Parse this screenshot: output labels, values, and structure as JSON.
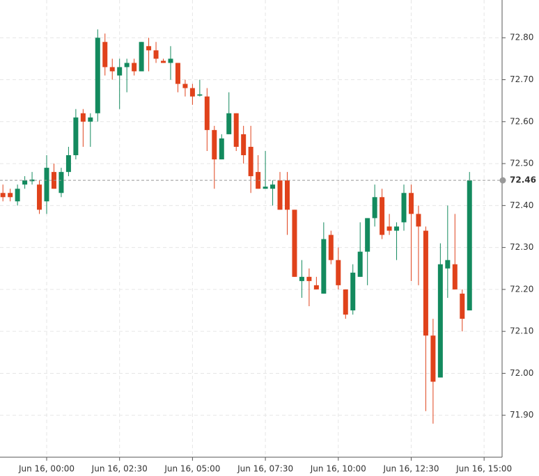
{
  "chart_data": {
    "type": "candlestick",
    "x": [
      "Jun 15, 22:30",
      "Jun 15, 22:45",
      "Jun 15, 23:00",
      "Jun 15, 23:15",
      "Jun 15, 23:30",
      "Jun 15, 23:45",
      "Jun 16, 00:00",
      "Jun 16, 00:15",
      "Jun 16, 00:30",
      "Jun 16, 00:45",
      "Jun 16, 01:00",
      "Jun 16, 01:15",
      "Jun 16, 01:30",
      "Jun 16, 01:45",
      "Jun 16, 02:00",
      "Jun 16, 02:15",
      "Jun 16, 02:30",
      "Jun 16, 02:45",
      "Jun 16, 03:00",
      "Jun 16, 03:15",
      "Jun 16, 03:30",
      "Jun 16, 03:45",
      "Jun 16, 04:00",
      "Jun 16, 04:15",
      "Jun 16, 04:30",
      "Jun 16, 04:45",
      "Jun 16, 05:00",
      "Jun 16, 05:15",
      "Jun 16, 05:30",
      "Jun 16, 05:45",
      "Jun 16, 06:00",
      "Jun 16, 06:15",
      "Jun 16, 06:30",
      "Jun 16, 06:45",
      "Jun 16, 07:00",
      "Jun 16, 07:15",
      "Jun 16, 07:30",
      "Jun 16, 07:45",
      "Jun 16, 08:00",
      "Jun 16, 08:15",
      "Jun 16, 08:30",
      "Jun 16, 08:45",
      "Jun 16, 09:00",
      "Jun 16, 09:15",
      "Jun 16, 09:30",
      "Jun 16, 09:45",
      "Jun 16, 10:00",
      "Jun 16, 10:15",
      "Jun 16, 10:30",
      "Jun 16, 10:45",
      "Jun 16, 11:00",
      "Jun 16, 11:15",
      "Jun 16, 11:30",
      "Jun 16, 11:45",
      "Jun 16, 12:00",
      "Jun 16, 12:15",
      "Jun 16, 12:30",
      "Jun 16, 12:45",
      "Jun 16, 13:00",
      "Jun 16, 13:15",
      "Jun 16, 13:30",
      "Jun 16, 13:45",
      "Jun 16, 14:00",
      "Jun 16, 14:15",
      "Jun 16, 14:30"
    ],
    "open": [
      72.43,
      72.43,
      72.41,
      72.45,
      72.458,
      72.45,
      72.41,
      72.48,
      72.43,
      72.48,
      72.52,
      72.62,
      72.6,
      72.62,
      72.79,
      72.73,
      72.71,
      72.73,
      72.74,
      72.72,
      72.78,
      72.77,
      72.745,
      72.74,
      72.74,
      72.69,
      72.68,
      72.662,
      72.66,
      72.58,
      72.51,
      72.57,
      72.62,
      72.57,
      72.54,
      72.48,
      72.44,
      72.44,
      72.46,
      72.46,
      72.39,
      72.22,
      72.23,
      72.21,
      72.19,
      72.33,
      72.27,
      72.2,
      72.15,
      72.23,
      72.29,
      72.37,
      72.42,
      72.35,
      72.34,
      72.36,
      72.43,
      72.38,
      72.34,
      72.09,
      71.99,
      72.25,
      72.26,
      72.19,
      72.15
    ],
    "high": [
      72.45,
      72.44,
      72.45,
      72.47,
      72.48,
      72.46,
      72.52,
      72.5,
      72.49,
      72.54,
      72.63,
      72.63,
      72.62,
      72.82,
      72.81,
      72.75,
      72.75,
      72.75,
      72.75,
      72.79,
      72.8,
      72.79,
      72.75,
      72.78,
      72.74,
      72.7,
      72.69,
      72.7,
      72.68,
      72.59,
      72.57,
      72.67,
      72.62,
      72.59,
      72.59,
      72.52,
      72.53,
      72.46,
      72.48,
      72.48,
      72.39,
      72.27,
      72.25,
      72.23,
      72.36,
      72.34,
      72.3,
      72.2,
      72.26,
      72.36,
      72.37,
      72.45,
      72.44,
      72.38,
      72.36,
      72.45,
      72.45,
      72.4,
      72.35,
      72.13,
      72.31,
      72.4,
      72.38,
      72.2,
      72.48
    ],
    "low": [
      72.41,
      72.41,
      72.4,
      72.44,
      72.45,
      72.38,
      72.38,
      72.44,
      72.42,
      72.47,
      72.51,
      72.54,
      72.54,
      72.6,
      72.71,
      72.7,
      72.63,
      72.67,
      72.71,
      72.72,
      72.72,
      72.74,
      72.74,
      72.7,
      72.67,
      72.66,
      72.64,
      72.66,
      72.53,
      72.44,
      72.51,
      72.57,
      72.53,
      72.5,
      72.43,
      72.44,
      72.44,
      72.4,
      72.39,
      72.33,
      72.23,
      72.18,
      72.16,
      72.2,
      72.19,
      72.26,
      72.2,
      72.13,
      72.14,
      72.23,
      72.21,
      72.35,
      72.32,
      72.33,
      72.27,
      72.34,
      72.22,
      72.21,
      71.91,
      71.88,
      71.99,
      72.18,
      72.2,
      72.1,
      72.15
    ],
    "close": [
      72.42,
      72.42,
      72.44,
      72.46,
      72.462,
      72.39,
      72.49,
      72.44,
      72.48,
      72.52,
      72.61,
      72.6,
      72.61,
      72.8,
      72.73,
      72.72,
      72.73,
      72.74,
      72.72,
      72.79,
      72.77,
      72.75,
      72.74,
      72.75,
      72.69,
      72.68,
      72.66,
      72.665,
      72.58,
      72.51,
      72.56,
      72.62,
      72.54,
      72.52,
      72.47,
      72.44,
      72.445,
      72.45,
      72.39,
      72.39,
      72.23,
      72.23,
      72.22,
      72.2,
      72.32,
      72.27,
      72.21,
      72.14,
      72.24,
      72.29,
      72.37,
      72.42,
      72.33,
      72.34,
      72.35,
      72.43,
      72.38,
      72.35,
      72.09,
      71.98,
      72.26,
      72.27,
      72.2,
      72.13,
      72.46
    ],
    "up_color": "#138a5e",
    "down_color": "#e0421b",
    "xlim": [
      "Jun 15, 22:24",
      "Jun 16, 15:37"
    ],
    "xticks": [
      "Jun 16, 00:00",
      "Jun 16, 02:30",
      "Jun 16, 05:00",
      "Jun 16, 07:30",
      "Jun 16, 10:00",
      "Jun 16, 12:30",
      "Jun 16, 15:00"
    ],
    "ylim": [
      71.8,
      72.89
    ],
    "yticks": [
      {
        "value": 71.9,
        "label": "71.90"
      },
      {
        "value": 72.0,
        "label": "72.00"
      },
      {
        "value": 72.1,
        "label": "72.10"
      },
      {
        "value": 72.2,
        "label": "72.20"
      },
      {
        "value": 72.3,
        "label": "72.30"
      },
      {
        "value": 72.4,
        "label": "72.40"
      },
      {
        "value": 72.5,
        "label": "72.50"
      },
      {
        "value": 72.6,
        "label": "72.60"
      },
      {
        "value": 72.7,
        "label": "72.70"
      },
      {
        "value": 72.8,
        "label": "72.80"
      }
    ],
    "last_price": 72.46,
    "grid": true
  }
}
